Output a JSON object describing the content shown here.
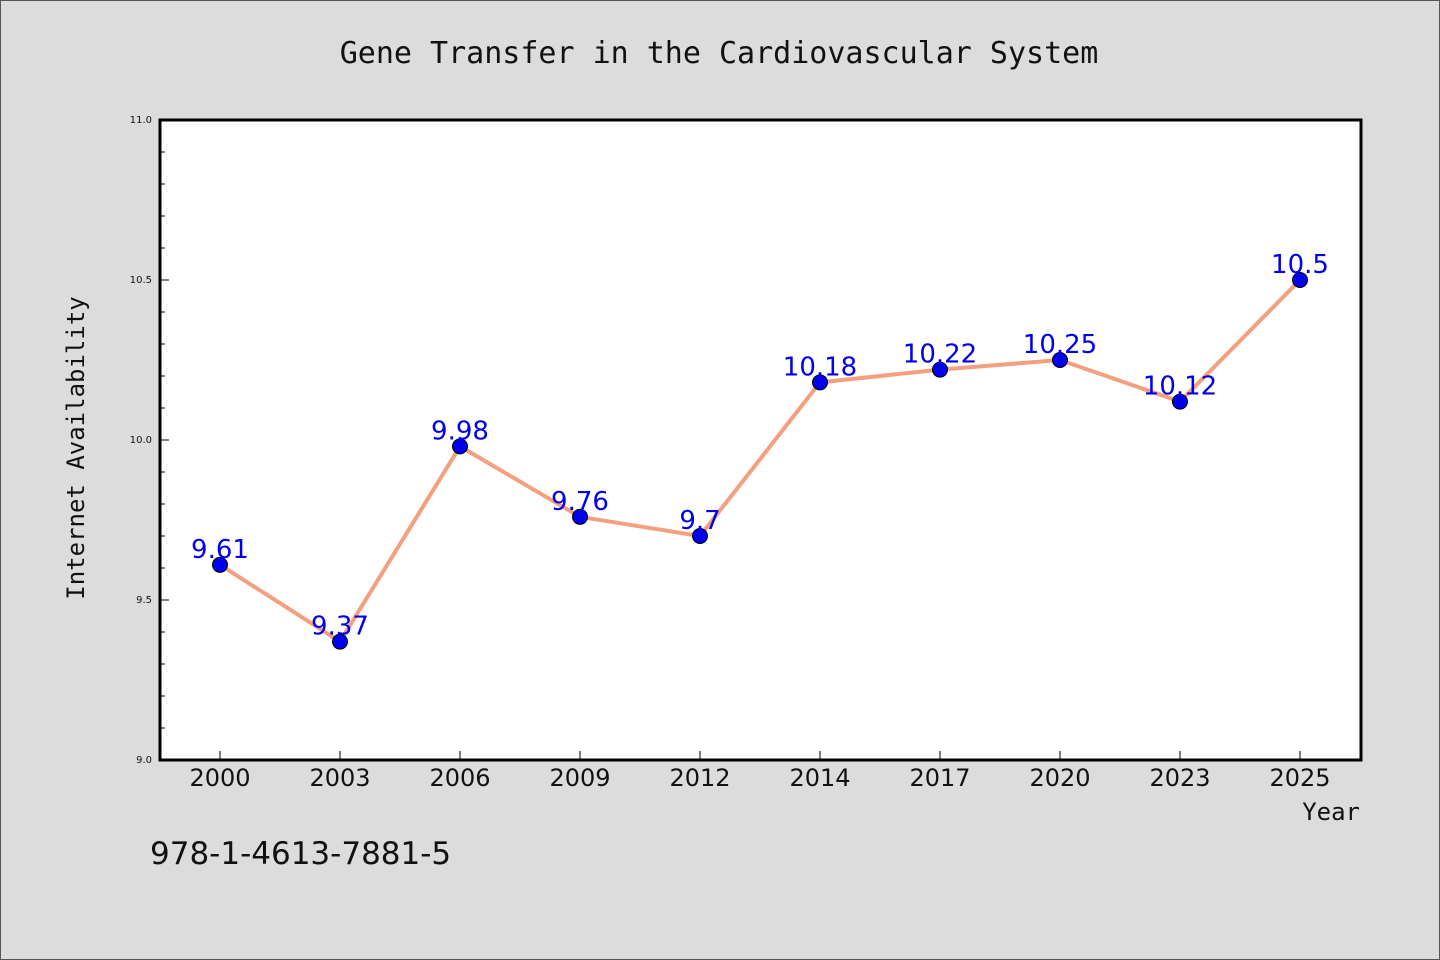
{
  "chart_data": {
    "type": "line",
    "title": "Gene Transfer in the Cardiovascular System",
    "xlabel": "Year",
    "ylabel": "Internet Availability",
    "categories": [
      "2000",
      "2003",
      "2006",
      "2009",
      "2012",
      "2014",
      "2017",
      "2020",
      "2023",
      "2025"
    ],
    "series": [
      {
        "values": [
          9.61,
          9.37,
          9.98,
          9.76,
          9.7,
          10.18,
          10.22,
          10.25,
          10.12,
          10.5
        ],
        "data_labels": [
          "9.61",
          "9.37",
          "9.98",
          "9.76",
          "9.7",
          "10.18",
          "10.22",
          "10.25",
          "10.12",
          "10.5"
        ],
        "line_color": "#f4a07e",
        "marker_color": "#0000ee"
      }
    ],
    "ylim": [
      9.0,
      11.0
    ],
    "yticks": [
      "9.0",
      "9.5",
      "10.0",
      "10.5",
      "11.0"
    ],
    "grid": false,
    "legend": "none"
  },
  "footer": {
    "isbn": "978-1-4613-7881-5"
  }
}
